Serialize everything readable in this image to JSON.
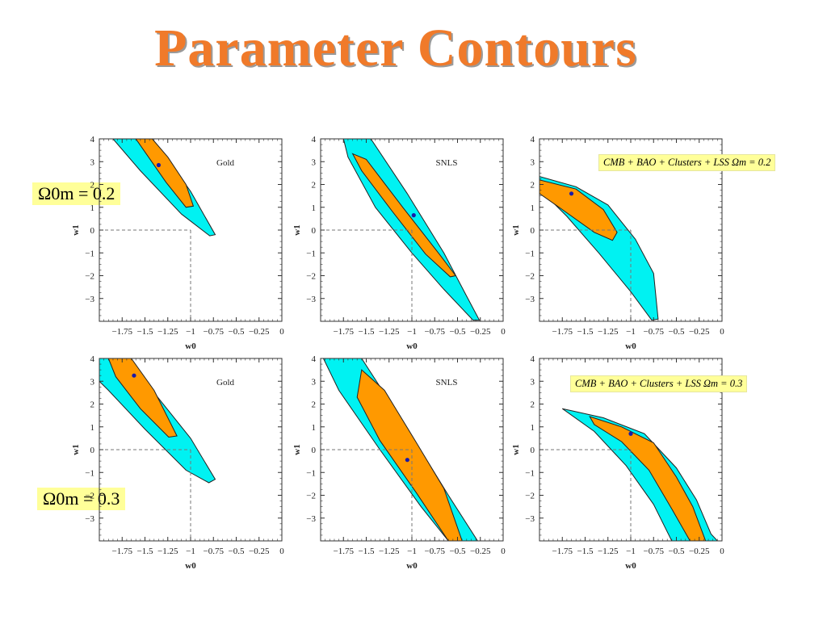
{
  "slide_title": "Parameter Contours",
  "colors": {
    "outer": "#00f2f2",
    "inner": "#ff9900",
    "dot": "#1a1aa8",
    "label_bg": "#ffff99",
    "title": "#f07a2a"
  },
  "omega_labels": {
    "row1": "Ω0m = 0.2",
    "row2": "Ω0m = 0.3"
  },
  "chart_data": [
    {
      "type": "contour",
      "row": 1,
      "col": 1,
      "dataset_label": "Gold",
      "xlabel": "w0",
      "ylabel": "w1",
      "xlim": [
        -2.0,
        0
      ],
      "ylim": [
        -4,
        4
      ],
      "xticks": [
        "−1.75",
        "−1.5",
        "−1.25",
        "−1",
        "−0.75",
        "−0.5",
        "−0.25",
        "0"
      ],
      "yticks": [
        "−3",
        "−2",
        "−1",
        "0",
        "1",
        "2",
        "3",
        "4"
      ],
      "reference_point": [
        -1,
        0
      ],
      "best_fit": [
        -1.35,
        2.85
      ],
      "outer_contour": [
        [
          -1.85,
          4
        ],
        [
          -1.5,
          4
        ],
        [
          -1.25,
          3.1
        ],
        [
          -1.0,
          1.7
        ],
        [
          -0.73,
          -0.2
        ],
        [
          -0.79,
          -0.25
        ],
        [
          -1.1,
          0.7
        ],
        [
          -1.55,
          2.6
        ]
      ],
      "inner_contour": [
        [
          -1.6,
          4
        ],
        [
          -1.42,
          4
        ],
        [
          -1.25,
          3.2
        ],
        [
          -1.05,
          2.0
        ],
        [
          -0.97,
          1.05
        ],
        [
          -1.05,
          1.0
        ],
        [
          -1.27,
          2.1
        ]
      ]
    },
    {
      "type": "contour",
      "row": 1,
      "col": 2,
      "dataset_label": "SNLS",
      "xlabel": "w0",
      "ylabel": "w1",
      "xlim": [
        -2.0,
        0
      ],
      "ylim": [
        -4,
        4
      ],
      "xticks": [
        "−1.75",
        "−1.5",
        "−1.25",
        "−1",
        "−0.75",
        "−0.5",
        "−0.25",
        "0"
      ],
      "yticks": [
        "−3",
        "−2",
        "−1",
        "0",
        "1",
        "2",
        "3",
        "4"
      ],
      "reference_point": [
        -1,
        0
      ],
      "best_fit": [
        -0.98,
        0.65
      ],
      "outer_contour": [
        [
          -1.75,
          4
        ],
        [
          -1.45,
          4
        ],
        [
          -1.05,
          1.6
        ],
        [
          -0.65,
          -1.0
        ],
        [
          -0.4,
          -2.9
        ],
        [
          -0.26,
          -3.95
        ],
        [
          -0.33,
          -3.95
        ],
        [
          -0.65,
          -2.6
        ],
        [
          -1.0,
          -1.0
        ],
        [
          -1.4,
          1.0
        ],
        [
          -1.7,
          3.2
        ]
      ],
      "inner_contour": [
        [
          -1.65,
          3.35
        ],
        [
          -1.5,
          3.1
        ],
        [
          -1.1,
          1.0
        ],
        [
          -0.7,
          -1.05
        ],
        [
          -0.52,
          -2.0
        ],
        [
          -0.58,
          -2.05
        ],
        [
          -0.85,
          -1.05
        ],
        [
          -1.22,
          0.85
        ],
        [
          -1.55,
          2.6
        ]
      ]
    },
    {
      "type": "contour",
      "row": 1,
      "col": 3,
      "dataset_label": "CMB + BAO + Clusters + LSS   Ωm = 0.2",
      "xlabel": "w0",
      "ylabel": "w1",
      "xlim": [
        -2.0,
        0
      ],
      "ylim": [
        -4,
        4
      ],
      "xticks": [
        "−1.75",
        "−1.5",
        "−1.25",
        "−1",
        "−0.75",
        "−0.5",
        "−0.25",
        "0"
      ],
      "yticks": [
        "−3",
        "−2",
        "−1",
        "0",
        "1",
        "2",
        "3",
        "4"
      ],
      "reference_point": [
        -1,
        0
      ],
      "best_fit": [
        -1.65,
        1.6
      ],
      "outer_contour": [
        [
          -2.0,
          2.35
        ],
        [
          -1.6,
          1.9
        ],
        [
          -1.25,
          1.1
        ],
        [
          -0.95,
          -0.4
        ],
        [
          -0.75,
          -1.9
        ],
        [
          -0.7,
          -3.9
        ],
        [
          -0.77,
          -3.95
        ],
        [
          -1.0,
          -2.7
        ],
        [
          -1.35,
          -1.0
        ],
        [
          -1.7,
          0.6
        ],
        [
          -2.0,
          1.8
        ]
      ],
      "inner_contour": [
        [
          -2.0,
          2.2
        ],
        [
          -1.6,
          1.8
        ],
        [
          -1.3,
          0.9
        ],
        [
          -1.15,
          -0.1
        ],
        [
          -1.2,
          -0.45
        ],
        [
          -1.4,
          -0.1
        ],
        [
          -1.75,
          0.9
        ],
        [
          -2.0,
          1.6
        ]
      ]
    },
    {
      "type": "contour",
      "row": 2,
      "col": 1,
      "dataset_label": "Gold",
      "xlabel": "w0",
      "ylabel": "w1",
      "xlim": [
        -2.0,
        0
      ],
      "ylim": [
        -4,
        4
      ],
      "xticks": [
        "−1.75",
        "−1.5",
        "−1.25",
        "−1",
        "−0.75",
        "−0.5",
        "−0.25",
        "0"
      ],
      "yticks": [
        "−3",
        "−2",
        "−1",
        "0",
        "1",
        "2",
        "3",
        "4"
      ],
      "reference_point": [
        -1,
        0
      ],
      "best_fit": [
        -1.62,
        3.25
      ],
      "outer_contour": [
        [
          -2.0,
          4
        ],
        [
          -1.75,
          4
        ],
        [
          -1.4,
          2.5
        ],
        [
          -1.0,
          0.5
        ],
        [
          -0.73,
          -1.3
        ],
        [
          -0.8,
          -1.45
        ],
        [
          -1.05,
          -0.9
        ],
        [
          -1.5,
          0.9
        ],
        [
          -1.9,
          2.6
        ],
        [
          -2.0,
          3.0
        ]
      ],
      "inner_contour": [
        [
          -1.9,
          4
        ],
        [
          -1.65,
          4
        ],
        [
          -1.4,
          2.6
        ],
        [
          -1.15,
          0.6
        ],
        [
          -1.24,
          0.55
        ],
        [
          -1.55,
          1.8
        ],
        [
          -1.82,
          3.2
        ]
      ]
    },
    {
      "type": "contour",
      "row": 2,
      "col": 2,
      "dataset_label": "SNLS",
      "xlabel": "w0",
      "ylabel": "w1",
      "xlim": [
        -2.0,
        0
      ],
      "ylim": [
        -4,
        4
      ],
      "xticks": [
        "−1.75",
        "−1.5",
        "−1.25",
        "−1",
        "−0.75",
        "−0.5",
        "−0.25",
        "0"
      ],
      "yticks": [
        "−3",
        "−2",
        "−1",
        "0",
        "1",
        "2",
        "3",
        "4"
      ],
      "reference_point": [
        -1,
        0
      ],
      "best_fit": [
        -1.05,
        -0.45
      ],
      "outer_contour": [
        [
          -1.97,
          4
        ],
        [
          -1.55,
          4
        ],
        [
          -1.0,
          0.6
        ],
        [
          -0.6,
          -2.0
        ],
        [
          -0.28,
          -4
        ],
        [
          -0.6,
          -4
        ],
        [
          -0.9,
          -2.5
        ],
        [
          -1.35,
          0.0
        ],
        [
          -1.8,
          2.6
        ]
      ],
      "inner_contour": [
        [
          -1.55,
          3.5
        ],
        [
          -1.3,
          2.6
        ],
        [
          -0.95,
          0.3
        ],
        [
          -0.65,
          -1.7
        ],
        [
          -0.45,
          -4
        ],
        [
          -0.6,
          -4
        ],
        [
          -0.95,
          -1.9
        ],
        [
          -1.35,
          0.4
        ],
        [
          -1.6,
          2.3
        ]
      ]
    },
    {
      "type": "contour",
      "row": 2,
      "col": 3,
      "dataset_label": "CMB + BAO + Clusters + LSS   Ωm = 0.3",
      "xlabel": "w0",
      "ylabel": "w1",
      "xlim": [
        -2.0,
        0
      ],
      "ylim": [
        -4,
        4
      ],
      "xticks": [
        "−1.75",
        "−1.5",
        "−1.25",
        "−1",
        "−0.75",
        "−0.5",
        "−0.25",
        "0"
      ],
      "yticks": [
        "−3",
        "−2",
        "−1",
        "0",
        "1",
        "2",
        "3",
        "4"
      ],
      "reference_point": [
        -1,
        0
      ],
      "best_fit": [
        -1.0,
        0.7
      ],
      "outer_contour": [
        [
          -1.75,
          1.8
        ],
        [
          -1.3,
          1.4
        ],
        [
          -0.85,
          0.7
        ],
        [
          -0.5,
          -0.8
        ],
        [
          -0.28,
          -2.2
        ],
        [
          -0.12,
          -3.7
        ],
        [
          -0.05,
          -4
        ],
        [
          -0.55,
          -4
        ],
        [
          -0.75,
          -2.4
        ],
        [
          -1.05,
          -0.7
        ],
        [
          -1.4,
          0.8
        ]
      ],
      "inner_contour": [
        [
          -1.45,
          1.45
        ],
        [
          -1.1,
          1.0
        ],
        [
          -0.75,
          0.3
        ],
        [
          -0.5,
          -1.2
        ],
        [
          -0.32,
          -2.5
        ],
        [
          -0.18,
          -4
        ],
        [
          -0.35,
          -4
        ],
        [
          -0.55,
          -2.6
        ],
        [
          -0.8,
          -0.9
        ],
        [
          -1.1,
          0.35
        ],
        [
          -1.4,
          1.1
        ]
      ]
    }
  ]
}
